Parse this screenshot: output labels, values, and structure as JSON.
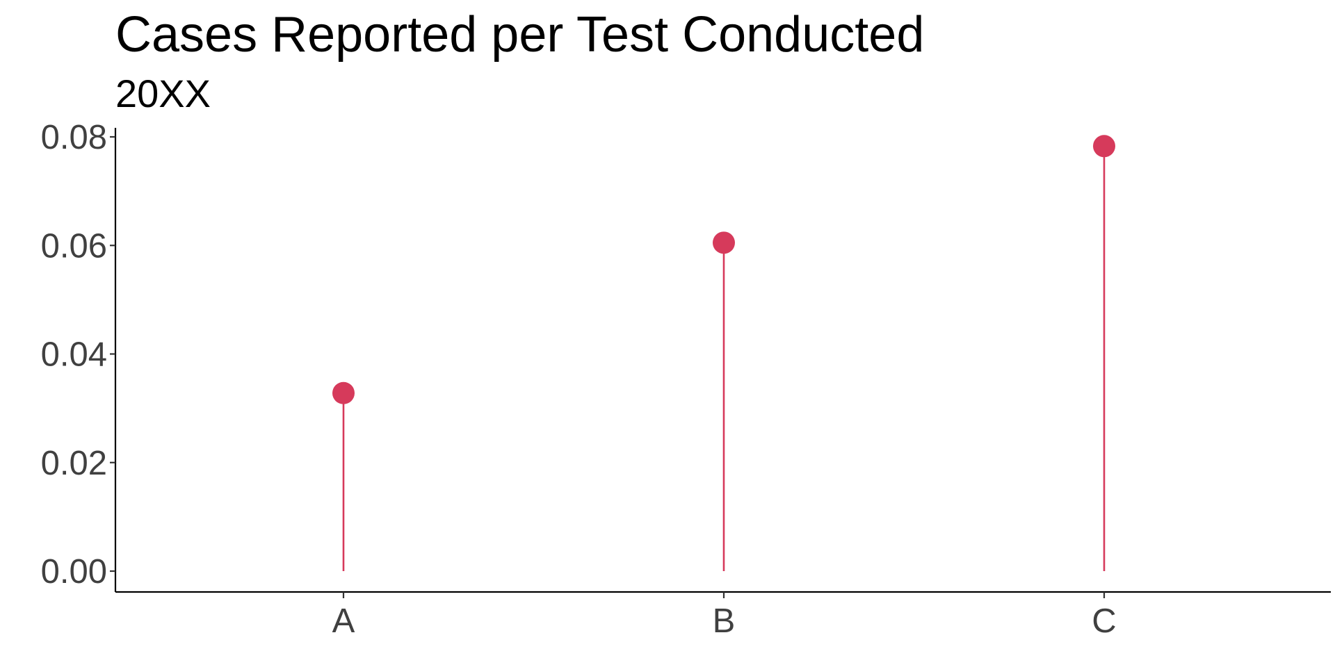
{
  "chart_data": {
    "type": "lollipop",
    "title": "Cases Reported per Test Conducted",
    "subtitle": "20XX",
    "xlabel": "",
    "ylabel": "",
    "categories": [
      "A",
      "B",
      "C"
    ],
    "values": [
      0.0328,
      0.0605,
      0.0783
    ],
    "ylim": [
      0,
      0.08
    ],
    "yticks": [
      0.0,
      0.02,
      0.04,
      0.06,
      0.08
    ],
    "ytick_labels": [
      "0.00",
      "0.02",
      "0.04",
      "0.06",
      "0.08"
    ],
    "grid": false,
    "legend": "none",
    "colors": {
      "marker": "#d63a5b",
      "stem": "#d63a5b",
      "axis": "#000000",
      "tick_text": "#404040"
    }
  }
}
